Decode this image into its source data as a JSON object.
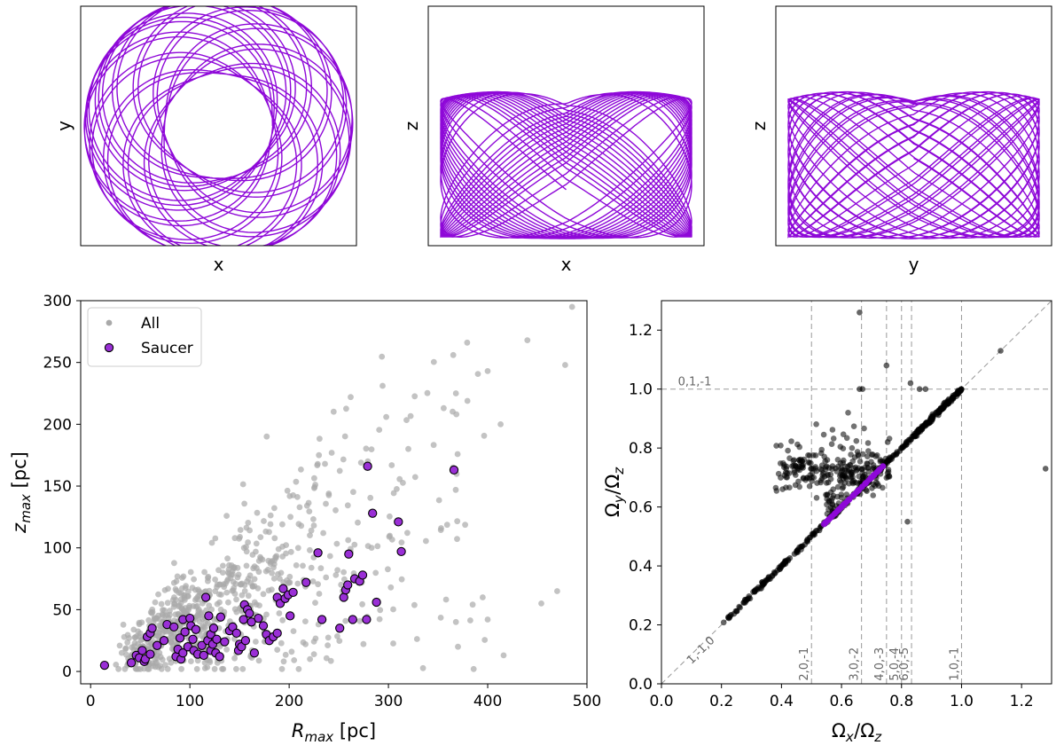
{
  "colors": {
    "orbit": "#8e08d8",
    "all_points": "#a9a9a9",
    "saucer_fill": "#9a2fd6",
    "saucer_edge": "#000000",
    "freq_points": "#000000",
    "freq_highlight": "#8e08d8",
    "guide_lines": "#999999",
    "guide_text": "#666666"
  },
  "chart_data": [
    {
      "type": "line",
      "panel": "orbit-xy",
      "xlabel": "x",
      "ylabel": "y",
      "ticks": "none",
      "description": "face-on rosette orbit projection"
    },
    {
      "type": "line",
      "panel": "orbit-xz",
      "xlabel": "x",
      "ylabel": "z",
      "ticks": "none",
      "description": "saucer-shaped edge-on orbit projection"
    },
    {
      "type": "line",
      "panel": "orbit-yz",
      "xlabel": "y",
      "ylabel": "z",
      "ticks": "none",
      "description": "saucer-shaped edge-on orbit projection"
    },
    {
      "type": "scatter",
      "panel": "zmax-vs-rmax",
      "xlabel": "R_max [pc]",
      "ylabel": "z_max [pc]",
      "xlim": [
        -10,
        500
      ],
      "ylim": [
        -10,
        300
      ],
      "xticks": [
        0,
        100,
        200,
        300,
        400,
        500
      ],
      "yticks": [
        0,
        50,
        100,
        150,
        200,
        250,
        300
      ],
      "legend": {
        "position": "upper-left",
        "entries": [
          "All",
          "Saucer"
        ]
      },
      "series": [
        {
          "name": "All",
          "count_approx": 1000,
          "trend": "z_max ~ 0.45 * R_max with wide scatter",
          "notable_points": [
            [
              485,
              295
            ],
            [
              478,
              248
            ],
            [
              440,
              268
            ],
            [
              400,
              243
            ],
            [
              368,
              225
            ],
            [
              413,
              200
            ],
            [
              365,
              165
            ],
            [
              320,
              180
            ],
            [
              262,
              222
            ],
            [
              230,
              175
            ],
            [
              454,
              55
            ],
            [
              470,
              65
            ],
            [
              395,
              60
            ],
            [
              400,
              42
            ],
            [
              368,
              40
            ],
            [
              416,
              13
            ],
            [
              370,
              20
            ],
            [
              221,
              10
            ],
            [
              225,
              14
            ]
          ]
        },
        {
          "name": "Saucer",
          "points": [
            [
              14,
              5
            ],
            [
              41,
              7
            ],
            [
              46,
              13
            ],
            [
              49,
              11
            ],
            [
              52,
              17
            ],
            [
              54,
              8
            ],
            [
              55,
              10
            ],
            [
              57,
              28
            ],
            [
              60,
              31
            ],
            [
              60,
              14
            ],
            [
              62,
              35
            ],
            [
              67,
              21
            ],
            [
              74,
              25
            ],
            [
              77,
              38
            ],
            [
              84,
              36
            ],
            [
              86,
              12
            ],
            [
              88,
              18
            ],
            [
              90,
              27
            ],
            [
              91,
              10
            ],
            [
              93,
              15
            ],
            [
              93,
              42
            ],
            [
              95,
              32
            ],
            [
              98,
              20
            ],
            [
              100,
              43
            ],
            [
              101,
              37
            ],
            [
              103,
              26
            ],
            [
              104,
              17
            ],
            [
              106,
              34
            ],
            [
              108,
              14
            ],
            [
              112,
              21
            ],
            [
              114,
              13
            ],
            [
              116,
              60
            ],
            [
              118,
              25
            ],
            [
              119,
              45
            ],
            [
              121,
              17
            ],
            [
              121,
              30
            ],
            [
              123,
              22
            ],
            [
              124,
              35
            ],
            [
              126,
              15
            ],
            [
              127,
              26
            ],
            [
              130,
              12
            ],
            [
              131,
              44
            ],
            [
              135,
              24
            ],
            [
              140,
              33
            ],
            [
              143,
              36
            ],
            [
              147,
              31
            ],
            [
              149,
              17
            ],
            [
              150,
              22
            ],
            [
              152,
              20
            ],
            [
              154,
              42
            ],
            [
              155,
              54
            ],
            [
              156,
              25
            ],
            [
              158,
              50
            ],
            [
              160,
              47
            ],
            [
              162,
              40
            ],
            [
              165,
              15
            ],
            [
              169,
              43
            ],
            [
              174,
              37
            ],
            [
              177,
              30
            ],
            [
              180,
              25
            ],
            [
              184,
              28
            ],
            [
              188,
              31
            ],
            [
              188,
              60
            ],
            [
              191,
              55
            ],
            [
              194,
              67
            ],
            [
              196,
              59
            ],
            [
              199,
              62
            ],
            [
              201,
              45
            ],
            [
              204,
              64
            ],
            [
              217,
              72
            ],
            [
              229,
              96
            ],
            [
              233,
              42
            ],
            [
              251,
              35
            ],
            [
              255,
              60
            ],
            [
              257,
              66
            ],
            [
              259,
              70
            ],
            [
              260,
              95
            ],
            [
              264,
              42
            ],
            [
              266,
              75
            ],
            [
              271,
              73
            ],
            [
              274,
              78
            ],
            [
              278,
              42
            ],
            [
              279,
              166
            ],
            [
              284,
              128
            ],
            [
              288,
              56
            ],
            [
              310,
              121
            ],
            [
              313,
              97
            ],
            [
              366,
              163
            ]
          ]
        }
      ]
    },
    {
      "type": "scatter",
      "panel": "frequency-ratios",
      "xlabel": "Ω_x/Ω_z",
      "ylabel": "Ω_y/Ω_z",
      "xlim": [
        0.0,
        1.3
      ],
      "ylim": [
        0.0,
        1.3
      ],
      "xticks": [
        0.0,
        0.2,
        0.4,
        0.6,
        0.8,
        1.0,
        1.2
      ],
      "yticks": [
        0.0,
        0.2,
        0.4,
        0.6,
        0.8,
        1.0,
        1.2
      ],
      "resonance_lines": {
        "vertical": [
          {
            "x": 0.5,
            "label": "2,0,-1"
          },
          {
            "x": 0.6667,
            "label": "3,0,-2"
          },
          {
            "x": 0.75,
            "label": "4,0,-3"
          },
          {
            "x": 0.8,
            "label": "5,0,-4"
          },
          {
            "x": 0.8333,
            "label": "6,0,-5"
          },
          {
            "x": 1.0,
            "label": "1,0,-1"
          }
        ],
        "horizontal": [
          {
            "y": 1.0,
            "label": "0,1,-1"
          }
        ],
        "diagonal": [
          {
            "slope": 1,
            "label": "1,-1,0"
          }
        ]
      },
      "series": [
        {
          "name": "diagonal sequence",
          "x_range": [
            0.2,
            1.0
          ],
          "relation": "Ω_y ≈ Ω_x"
        },
        {
          "name": "saucer (highlighted)",
          "x_range": [
            0.54,
            0.74
          ],
          "relation": "Ω_y ≈ Ω_x"
        },
        {
          "name": "upper cloud",
          "x_range": [
            0.37,
            0.78
          ],
          "y_range": [
            0.62,
            0.92
          ]
        },
        {
          "name": "outliers",
          "points": [
            [
              0.66,
              1.26
            ],
            [
              0.75,
              1.08
            ],
            [
              0.83,
              1.02
            ],
            [
              0.86,
              1.0
            ],
            [
              0.88,
              1.0
            ],
            [
              0.66,
              1.0
            ],
            [
              0.67,
              1.0
            ],
            [
              0.82,
              0.55
            ],
            [
              1.13,
              1.13
            ],
            [
              1.28,
              0.73
            ],
            [
              0.57,
              0.63
            ],
            [
              0.58,
              0.57
            ]
          ]
        }
      ]
    }
  ]
}
